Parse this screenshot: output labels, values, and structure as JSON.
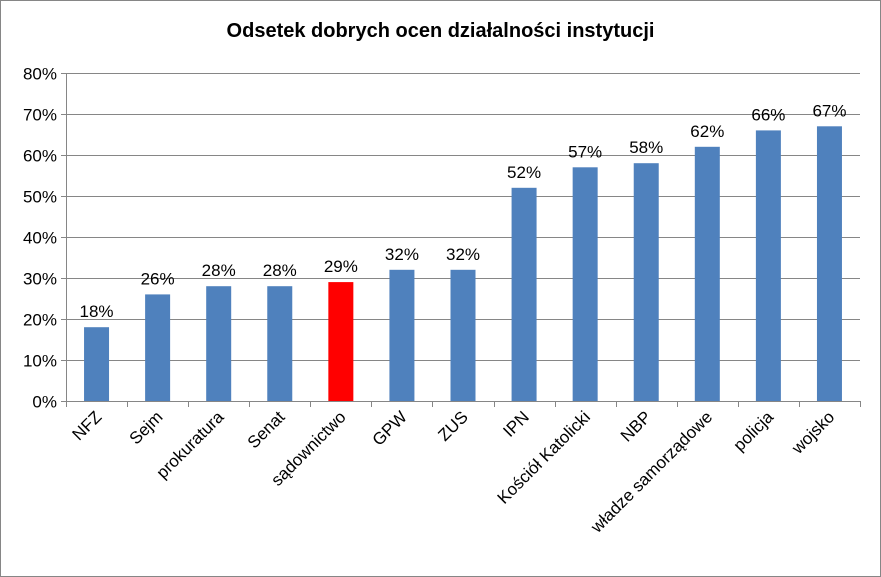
{
  "chart_data": {
    "type": "bar",
    "title": "Odsetek dobrych ocen działalności instytucji",
    "xlabel": "",
    "ylabel": "",
    "categories": [
      "NFZ",
      "Sejm",
      "prokuratura",
      "Senat",
      "sądownictwo",
      "GPW",
      "ZUS",
      "IPN",
      "Kościół Katolicki",
      "NBP",
      "władze samorządowe",
      "policja",
      "wojsko"
    ],
    "values": [
      18,
      26,
      28,
      28,
      29,
      32,
      32,
      52,
      57,
      58,
      62,
      66,
      67
    ],
    "value_labels": [
      "18%",
      "26%",
      "28%",
      "28%",
      "29%",
      "32%",
      "32%",
      "52%",
      "57%",
      "58%",
      "62%",
      "66%",
      "67%"
    ],
    "ylim": [
      0,
      80
    ],
    "yticks": [
      0,
      10,
      20,
      30,
      40,
      50,
      60,
      70,
      80
    ],
    "ytick_labels": [
      "0%",
      "10%",
      "20%",
      "30%",
      "40%",
      "50%",
      "60%",
      "70%",
      "80%"
    ],
    "grid": true,
    "legend": "none",
    "colors": {
      "bar": "#4f81bd",
      "highlight": "#ff0000",
      "highlight_category": "sądownictwo",
      "grid": "#868686"
    }
  }
}
